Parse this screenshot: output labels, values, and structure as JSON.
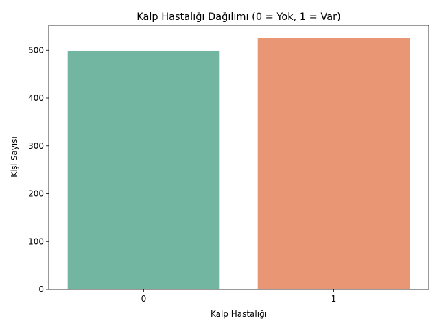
{
  "chart_data": {
    "type": "bar",
    "title": "Kalp Hastalığı Dağılımı (0 = Yok, 1 = Var)",
    "xlabel": "Kalp Hastalığı",
    "ylabel": "Kişi Sayısı",
    "categories": [
      "0",
      "1"
    ],
    "values": [
      499,
      526
    ],
    "colors": [
      "#72b6a1",
      "#e99675"
    ],
    "ylim": [
      0,
      552
    ],
    "yticks": [
      0,
      100,
      200,
      300,
      400,
      500
    ],
    "grid": false,
    "legend": "none"
  }
}
